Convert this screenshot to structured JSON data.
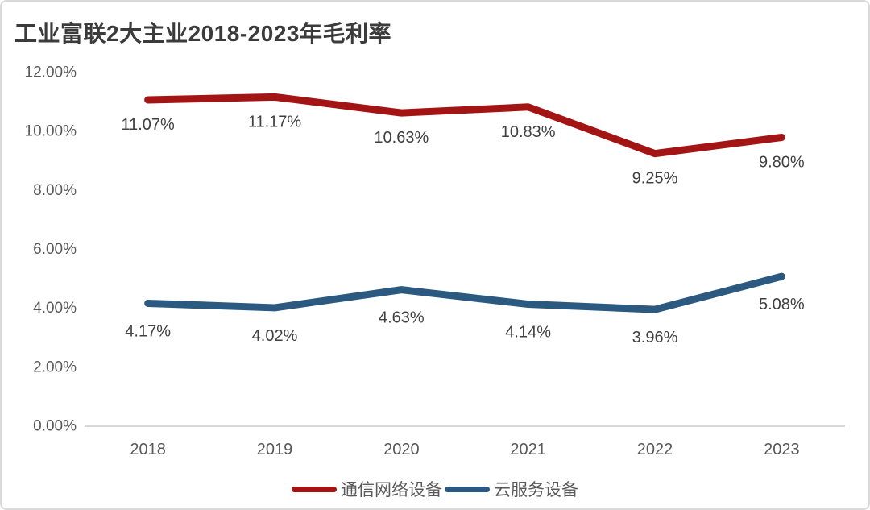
{
  "frame": {
    "background": "#FFFFFF",
    "border_color": "#D9D9D9"
  },
  "chart_data": {
    "type": "line",
    "title": "工业富联2大主业2018-2023年毛利率",
    "categories": [
      "2018",
      "2019",
      "2020",
      "2021",
      "2022",
      "2023"
    ],
    "series": [
      {
        "name": "通信网络设备",
        "color": "#A31414",
        "values": [
          11.07,
          11.17,
          10.63,
          10.83,
          9.25,
          9.8
        ],
        "value_labels": [
          "11.07%",
          "11.17%",
          "10.63%",
          "10.83%",
          "9.25%",
          "9.80%"
        ]
      },
      {
        "name": "云服务设备",
        "color": "#2C597F",
        "values": [
          4.17,
          4.02,
          4.63,
          4.14,
          3.96,
          5.08
        ],
        "value_labels": [
          "4.17%",
          "4.02%",
          "4.63%",
          "4.14%",
          "3.96%",
          "5.08%"
        ]
      }
    ],
    "xlabel": "",
    "ylabel": "",
    "y_axis": {
      "min": 0,
      "max": 12,
      "step": 2,
      "tick_labels": [
        "0.00%",
        "2.00%",
        "4.00%",
        "6.00%",
        "8.00%",
        "10.00%",
        "12.00%"
      ]
    },
    "grid": false,
    "legend_position": "bottom",
    "axis_line_color": "#D9D9D9",
    "text_colors": {
      "title": "#3B3B3B",
      "axis": "#595959",
      "data_label": "#404040",
      "legend": "#595959"
    }
  }
}
